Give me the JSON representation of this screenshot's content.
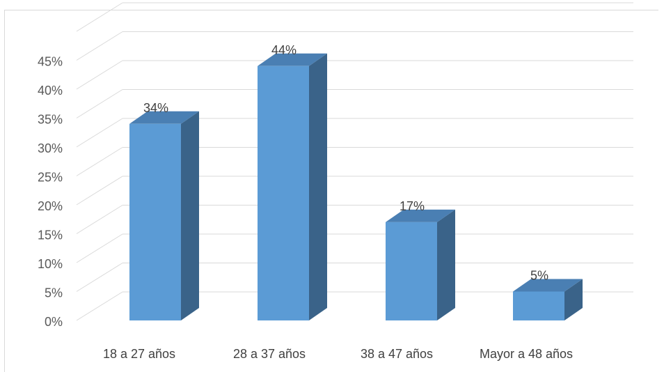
{
  "chart_data": {
    "type": "bar",
    "style": "3d-column",
    "categories": [
      "18 a 27 años",
      "28 a 37 años",
      "38 a 47 años",
      "Mayor a 48 años"
    ],
    "values": [
      34,
      44,
      17,
      5
    ],
    "data_labels": [
      "34%",
      "44%",
      "17%",
      "5%"
    ],
    "title": "",
    "xlabel": "",
    "ylabel": "",
    "ylim": [
      0,
      45
    ],
    "y_ticks": [
      0,
      5,
      10,
      15,
      20,
      25,
      30,
      35,
      40,
      45
    ],
    "y_tick_labels": [
      "0%",
      "5%",
      "10%",
      "15%",
      "20%",
      "25%",
      "30%",
      "35%",
      "40%",
      "45%"
    ],
    "grid": true,
    "legend": "none",
    "colors": {
      "bar_front": "#5b9bd5",
      "bar_top": "#4a7fb3",
      "bar_side": "#3a6389",
      "gridline": "#d9d9d9"
    }
  }
}
